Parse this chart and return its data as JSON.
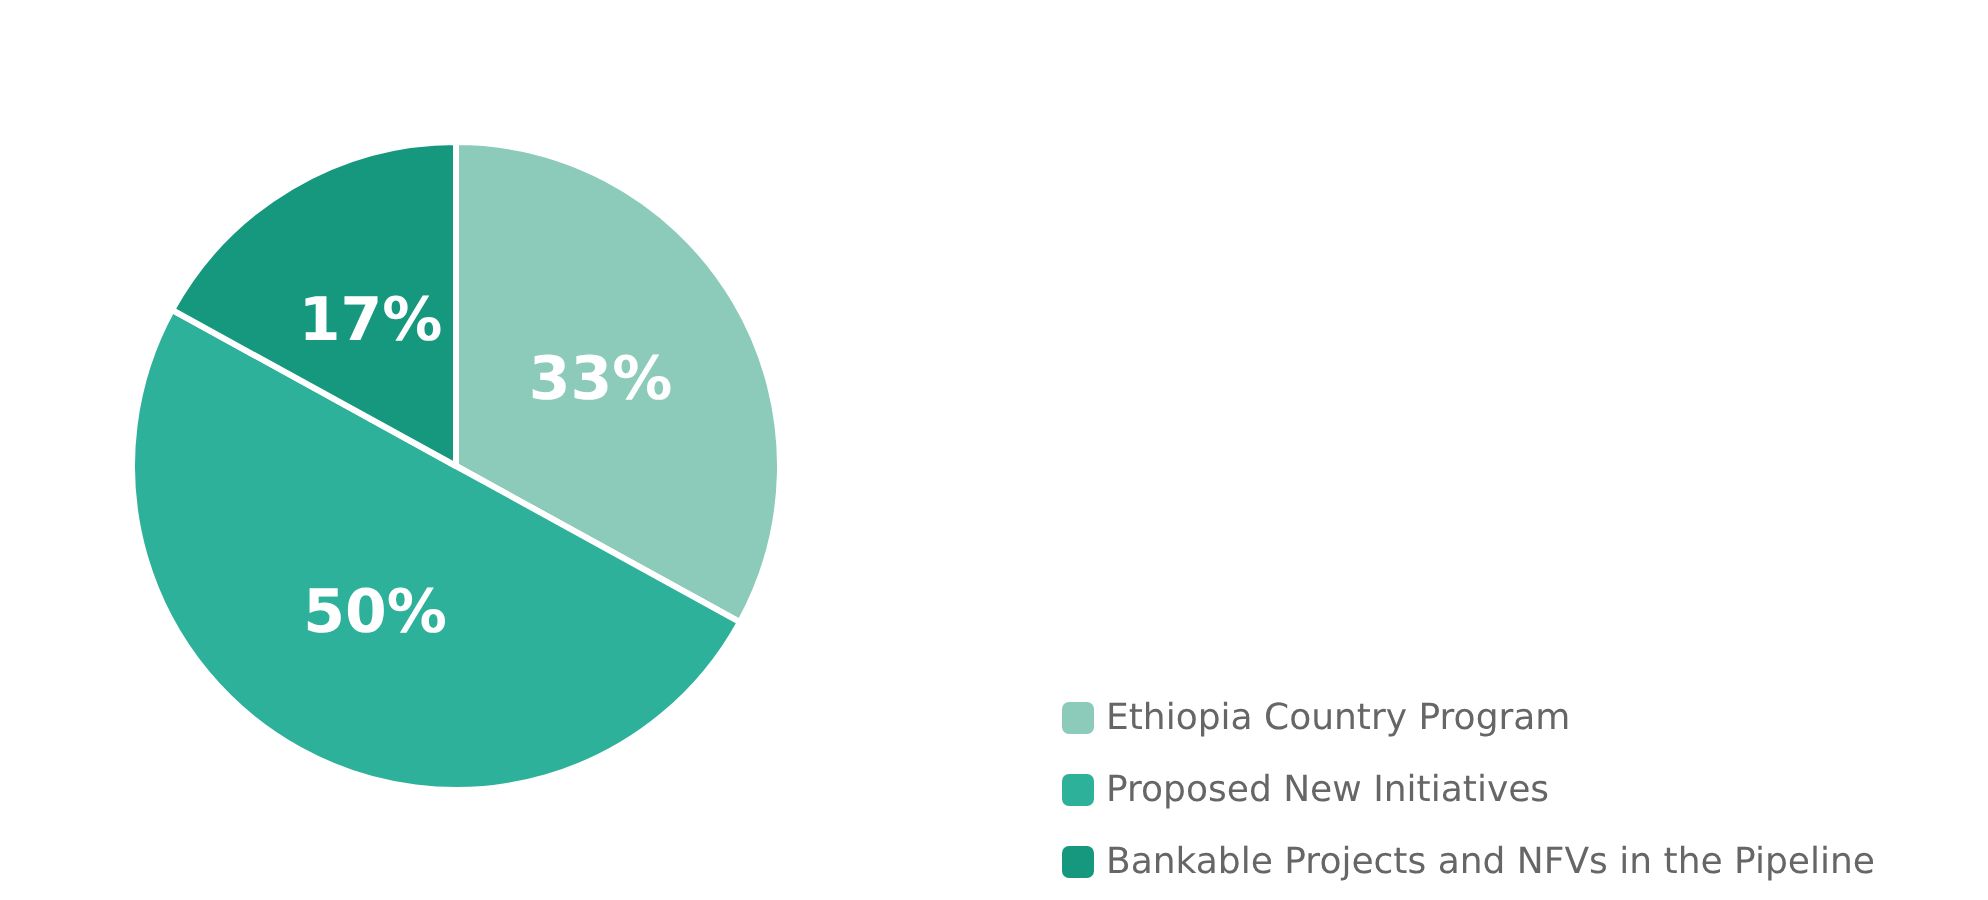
{
  "chart_data": {
    "type": "pie",
    "categories": [
      "Ethiopia Country Program",
      "Proposed New Initiatives",
      "Bankable Projects and NFVs in the Pipeline"
    ],
    "values": [
      33,
      50,
      17
    ],
    "colors": [
      "#8ccab9",
      "#2eb19a",
      "#16987e"
    ],
    "value_labels": [
      "33%",
      "50%",
      "17%"
    ],
    "legend": "bottom right"
  }
}
